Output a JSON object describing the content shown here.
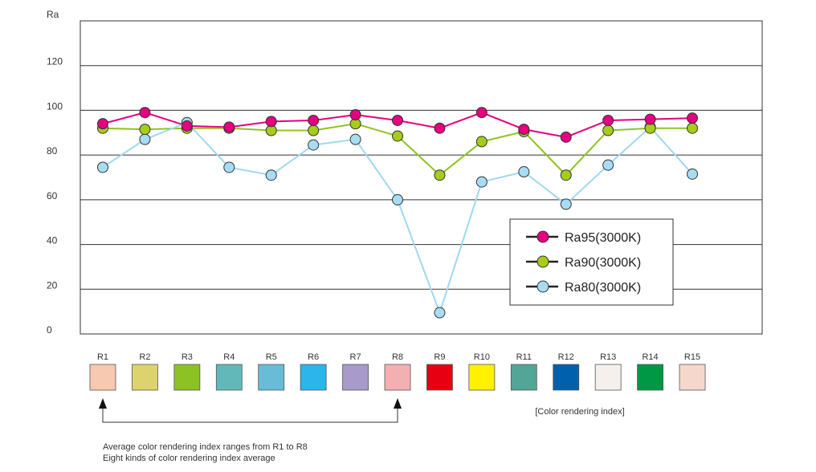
{
  "chart_data": {
    "type": "line",
    "ylabel": "Ra",
    "ylim": [
      0,
      140
    ],
    "yticks": [
      0,
      20,
      40,
      60,
      80,
      100,
      120
    ],
    "categories": [
      "R1",
      "R2",
      "R3",
      "R4",
      "R5",
      "R6",
      "R7",
      "R8",
      "R9",
      "R10",
      "R11",
      "R12",
      "R13",
      "R14",
      "R15"
    ],
    "swatch_colors": [
      "#f6c9b0",
      "#dcd36f",
      "#8cc224",
      "#62b8b8",
      "#68bcd6",
      "#2bb5e8",
      "#a89acb",
      "#f2b0b2",
      "#e60012",
      "#fff100",
      "#53a598",
      "#0060ac",
      "#f6f0ec",
      "#009844",
      "#f6d7cb"
    ],
    "series": [
      {
        "name": "Ra95(3000K)",
        "line": "#e4007f",
        "marker": "#e4007f",
        "values": [
          94,
          99,
          93,
          92.5,
          95,
          95.5,
          98,
          95.5,
          92,
          99,
          91.5,
          88,
          95.5,
          96,
          96.5
        ]
      },
      {
        "name": "Ra90(3000K)",
        "line": "#8fc31f",
        "marker": "#a6cc1c",
        "values": [
          92,
          91.5,
          92,
          92,
          91,
          91,
          94,
          88.5,
          71,
          86,
          90.5,
          71,
          91,
          92,
          92
        ]
      },
      {
        "name": "Ra80(3000K)",
        "line": "#9fd8f0",
        "marker": "#a8dcf4",
        "values": [
          74.5,
          87,
          94.5,
          74.5,
          71,
          84.5,
          87,
          60,
          9.5,
          68,
          72.5,
          58,
          75.5,
          92.5,
          71.5
        ]
      }
    ],
    "legend": "center-right",
    "grid": true,
    "annotation": "[Color rendering index]",
    "notes": [
      "Average color rendering index ranges from R1 to R8",
      "Eight kinds of color rendering index average"
    ]
  }
}
